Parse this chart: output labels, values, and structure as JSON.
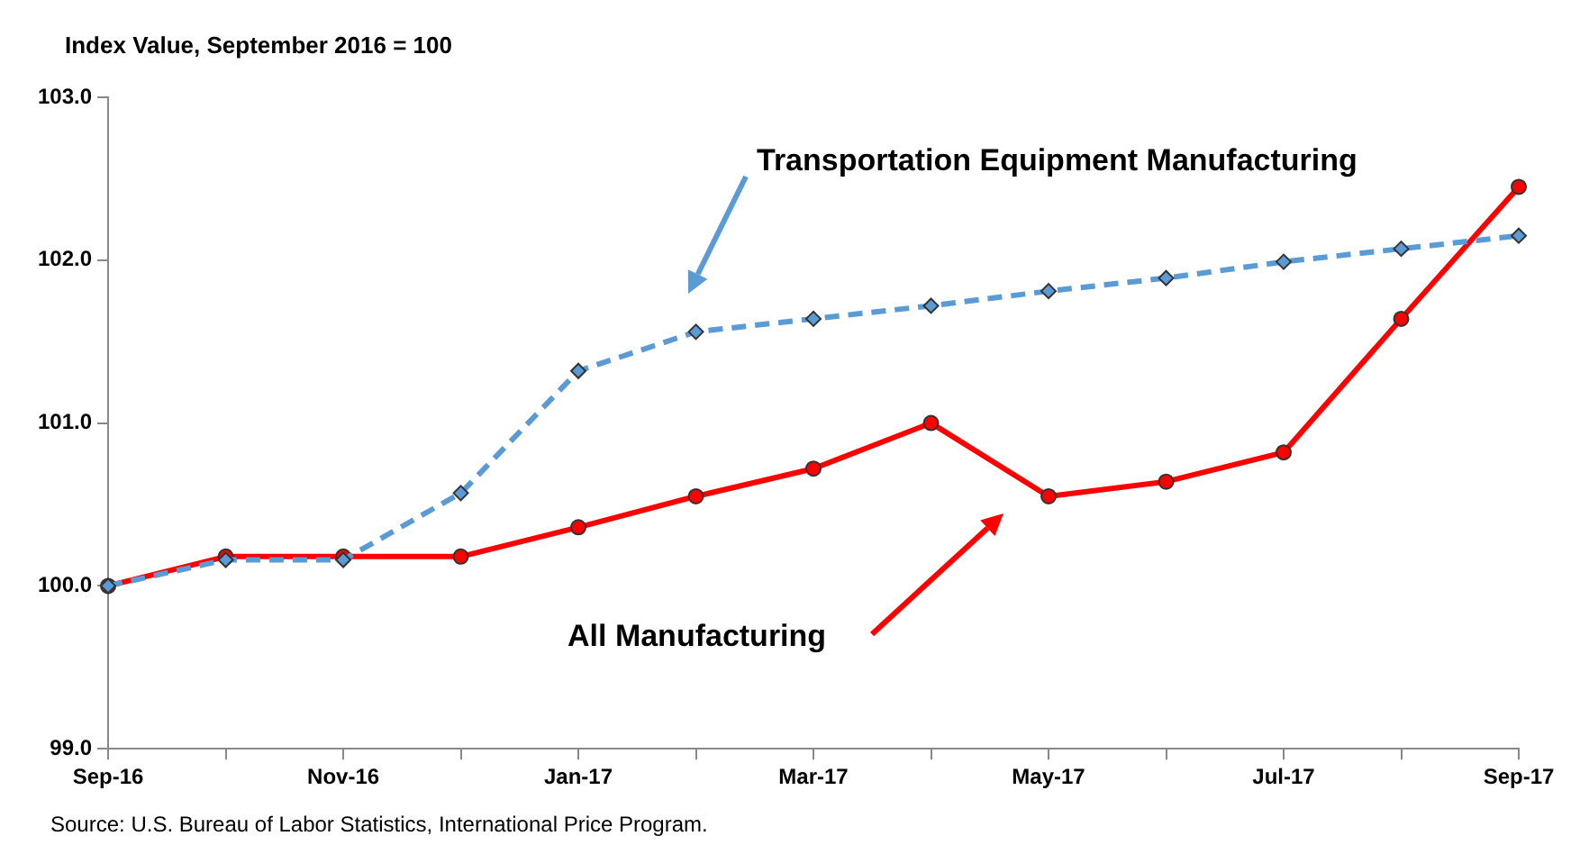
{
  "chart_data": {
    "type": "line",
    "ylabel": "Index Value, September 2016 = 100",
    "categories": [
      "Sep-16",
      null,
      "Nov-16",
      null,
      "Jan-17",
      null,
      "Mar-17",
      null,
      "May-17",
      null,
      "Jul-17",
      null,
      "Sep-17"
    ],
    "series": [
      {
        "name": "Transportation Equipment Manufacturing",
        "color": "#5b9bd5",
        "marker": "diamond",
        "line_style": "dashed",
        "values": [
          100.0,
          100.16,
          100.16,
          100.57,
          101.32,
          101.56,
          101.64,
          101.72,
          101.81,
          101.89,
          101.99,
          102.07,
          102.15
        ]
      },
      {
        "name": "All Manufacturing",
        "color": "#ff0000",
        "marker": "circle",
        "line_style": "solid",
        "values": [
          100.0,
          100.18,
          100.18,
          100.18,
          100.36,
          100.55,
          100.72,
          101.0,
          100.55,
          100.64,
          100.82,
          101.64,
          102.45
        ]
      }
    ],
    "ylim": [
      99,
      103
    ],
    "yticks": [
      {
        "value": 99,
        "label": "99.0"
      },
      {
        "value": 100,
        "label": "100.0"
      },
      {
        "value": 101,
        "label": "101.0"
      },
      {
        "value": 102,
        "label": "102.0"
      },
      {
        "value": 103,
        "label": "103.0"
      }
    ],
    "grid": false,
    "legend": false,
    "annotations": [
      "Source: U.S. Bureau of Labor Statistics, International Price Program."
    ]
  }
}
